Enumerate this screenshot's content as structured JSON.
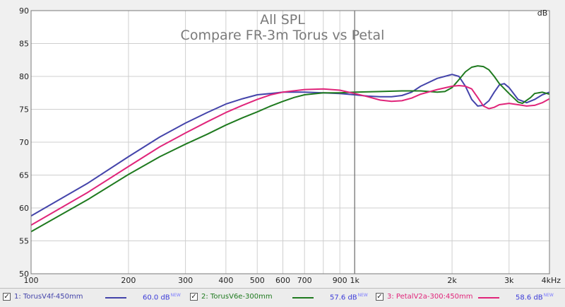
{
  "chart_data": {
    "type": "line",
    "title": "All SPL",
    "subtitle": "Compare FR-3m Torus vs Petal",
    "ylabel": "dB",
    "xlabel": "",
    "x_scale": "log",
    "xlim": [
      100,
      4000
    ],
    "ylim": [
      50,
      90
    ],
    "y_ticks": [
      90,
      85,
      80,
      75,
      70,
      65,
      60,
      55,
      50
    ],
    "x_ticks": [
      {
        "value": 100,
        "label": "100"
      },
      {
        "value": 200,
        "label": "200"
      },
      {
        "value": 300,
        "label": "300"
      },
      {
        "value": 400,
        "label": "400"
      },
      {
        "value": 500,
        "label": "500"
      },
      {
        "value": 600,
        "label": "600"
      },
      {
        "value": 700,
        "label": "700"
      },
      {
        "value": 900,
        "label": "900"
      },
      {
        "value": 1000,
        "label": "1k"
      },
      {
        "value": 2000,
        "label": "2k"
      },
      {
        "value": 3000,
        "label": "3k"
      },
      {
        "value": 4000,
        "label": "4kHz"
      }
    ],
    "minor_x_gridlines": [
      800
    ],
    "grid": true,
    "plot_background": "#ffffff",
    "grid_color": "#cfcfcf",
    "series": [
      {
        "name": "1: TorusV4f-450mm",
        "value_label": "60.0 dB",
        "color": "#4444aa",
        "points": [
          [
            100,
            58.8
          ],
          [
            150,
            63.8
          ],
          [
            200,
            67.8
          ],
          [
            250,
            70.8
          ],
          [
            300,
            72.9
          ],
          [
            350,
            74.5
          ],
          [
            400,
            75.8
          ],
          [
            450,
            76.6
          ],
          [
            500,
            77.2
          ],
          [
            550,
            77.4
          ],
          [
            600,
            77.6
          ],
          [
            700,
            77.6
          ],
          [
            800,
            77.5
          ],
          [
            900,
            77.4
          ],
          [
            1000,
            77.2
          ],
          [
            1100,
            77.0
          ],
          [
            1200,
            76.9
          ],
          [
            1300,
            76.9
          ],
          [
            1400,
            77.1
          ],
          [
            1500,
            77.6
          ],
          [
            1600,
            78.5
          ],
          [
            1800,
            79.7
          ],
          [
            2000,
            80.3
          ],
          [
            2100,
            80.0
          ],
          [
            2200,
            78.5
          ],
          [
            2300,
            76.5
          ],
          [
            2400,
            75.5
          ],
          [
            2500,
            75.6
          ],
          [
            2600,
            76.3
          ],
          [
            2700,
            77.6
          ],
          [
            2800,
            78.7
          ],
          [
            2900,
            78.9
          ],
          [
            3000,
            78.3
          ],
          [
            3200,
            76.5
          ],
          [
            3400,
            76.0
          ],
          [
            3600,
            76.5
          ],
          [
            3800,
            77.2
          ],
          [
            4000,
            77.6
          ]
        ]
      },
      {
        "name": "2: TorusV6e-300mm",
        "value_label": "57.6 dB",
        "color": "#1f7a1f",
        "points": [
          [
            100,
            56.4
          ],
          [
            150,
            61.3
          ],
          [
            200,
            65.1
          ],
          [
            250,
            67.8
          ],
          [
            300,
            69.7
          ],
          [
            350,
            71.2
          ],
          [
            400,
            72.6
          ],
          [
            450,
            73.7
          ],
          [
            500,
            74.6
          ],
          [
            550,
            75.5
          ],
          [
            600,
            76.2
          ],
          [
            650,
            76.8
          ],
          [
            700,
            77.2
          ],
          [
            800,
            77.5
          ],
          [
            900,
            77.5
          ],
          [
            1000,
            77.6
          ],
          [
            1200,
            77.7
          ],
          [
            1400,
            77.8
          ],
          [
            1600,
            77.8
          ],
          [
            1800,
            77.6
          ],
          [
            1900,
            77.7
          ],
          [
            2000,
            78.3
          ],
          [
            2100,
            79.5
          ],
          [
            2200,
            80.7
          ],
          [
            2300,
            81.4
          ],
          [
            2400,
            81.6
          ],
          [
            2500,
            81.5
          ],
          [
            2600,
            81.0
          ],
          [
            2700,
            80.0
          ],
          [
            2800,
            78.9
          ],
          [
            3000,
            77.4
          ],
          [
            3200,
            76.1
          ],
          [
            3300,
            75.9
          ],
          [
            3500,
            76.8
          ],
          [
            3600,
            77.4
          ],
          [
            3800,
            77.6
          ],
          [
            4000,
            77.3
          ]
        ]
      },
      {
        "name": "3: PetalV2a-300:450mm",
        "value_label": "58.6 dB",
        "color": "#e0257a",
        "points": [
          [
            100,
            57.4
          ],
          [
            150,
            62.4
          ],
          [
            200,
            66.3
          ],
          [
            250,
            69.3
          ],
          [
            300,
            71.4
          ],
          [
            350,
            73.1
          ],
          [
            400,
            74.5
          ],
          [
            450,
            75.6
          ],
          [
            500,
            76.5
          ],
          [
            550,
            77.2
          ],
          [
            600,
            77.6
          ],
          [
            700,
            78.0
          ],
          [
            800,
            78.1
          ],
          [
            900,
            77.9
          ],
          [
            1000,
            77.4
          ],
          [
            1100,
            76.9
          ],
          [
            1200,
            76.4
          ],
          [
            1300,
            76.2
          ],
          [
            1400,
            76.3
          ],
          [
            1500,
            76.7
          ],
          [
            1600,
            77.3
          ],
          [
            1800,
            78.0
          ],
          [
            2000,
            78.5
          ],
          [
            2100,
            78.6
          ],
          [
            2200,
            78.5
          ],
          [
            2300,
            78.1
          ],
          [
            2400,
            76.8
          ],
          [
            2500,
            75.5
          ],
          [
            2600,
            75.1
          ],
          [
            2700,
            75.3
          ],
          [
            2800,
            75.7
          ],
          [
            3000,
            75.9
          ],
          [
            3200,
            75.7
          ],
          [
            3400,
            75.5
          ],
          [
            3600,
            75.6
          ],
          [
            3800,
            76.0
          ],
          [
            4000,
            76.6
          ]
        ]
      }
    ],
    "cursor_x": 1000,
    "cursor_color": "#555555"
  },
  "legend": {
    "checked_glyph": "✓",
    "new_badge": "NEW"
  },
  "colors": {
    "legend_value": "#3b3bd8"
  }
}
